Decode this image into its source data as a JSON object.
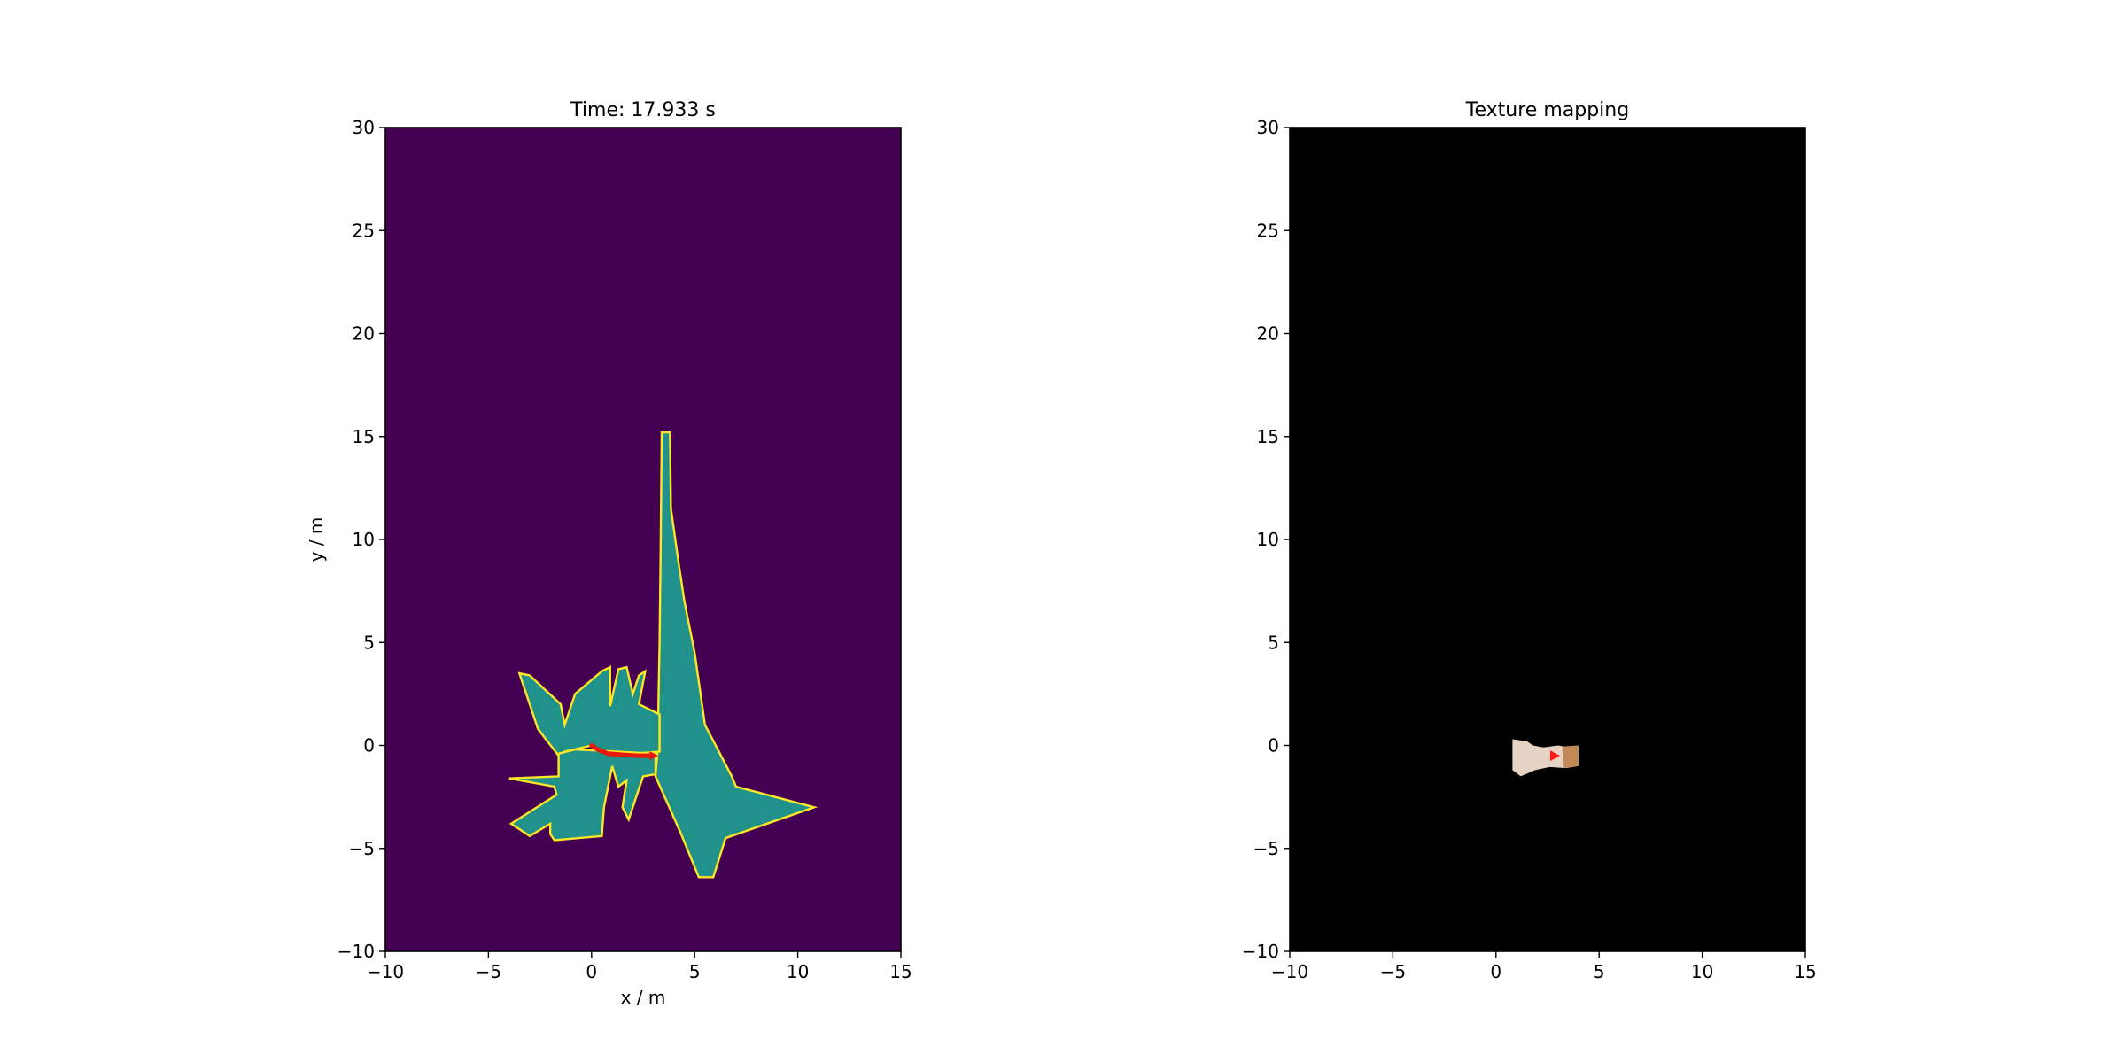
{
  "figure": {
    "background": "#ffffff"
  },
  "chart_data": [
    {
      "type": "heatmap",
      "title": "Time: 17.933 s",
      "xlabel": "x / m",
      "ylabel": "y / m",
      "xlim": [
        -10,
        15
      ],
      "ylim": [
        -10,
        30
      ],
      "xticks": [
        -10,
        -5,
        0,
        5,
        10,
        15
      ],
      "yticks": [
        -10,
        -5,
        0,
        5,
        10,
        15,
        20,
        25,
        30
      ],
      "xtick_labels": [
        "−10",
        "−5",
        "0",
        "5",
        "10",
        "15"
      ],
      "ytick_labels": [
        "−10",
        "−5",
        "0",
        "5",
        "10",
        "15",
        "20",
        "25",
        "30"
      ],
      "colormap": "viridis",
      "colors": {
        "unknown": "#440154",
        "free": "#21918c",
        "occupied": "#fde725",
        "trajectory": "#e8180c"
      },
      "free_regions": [
        [
          [
            3.2,
            -0.3
          ],
          [
            3.3,
            5.0
          ],
          [
            3.35,
            9.5
          ],
          [
            3.4,
            15.2
          ],
          [
            3.8,
            15.2
          ],
          [
            3.85,
            11.5
          ],
          [
            4.2,
            9.0
          ],
          [
            4.5,
            7.0
          ],
          [
            5.0,
            4.5
          ],
          [
            5.5,
            1.0
          ],
          [
            6.8,
            -1.5
          ],
          [
            7.0,
            -2.0
          ],
          [
            10.8,
            -3.0
          ],
          [
            6.5,
            -4.5
          ],
          [
            5.9,
            -6.4
          ],
          [
            5.2,
            -6.4
          ],
          [
            4.3,
            -4.2
          ],
          [
            3.1,
            -1.5
          ]
        ],
        [
          [
            -3.5,
            3.5
          ],
          [
            -3.0,
            3.4
          ],
          [
            -1.5,
            2.0
          ],
          [
            -1.3,
            1.0
          ],
          [
            -0.8,
            2.5
          ],
          [
            0.5,
            3.6
          ],
          [
            0.9,
            3.8
          ],
          [
            0.9,
            1.9
          ],
          [
            1.3,
            3.7
          ],
          [
            1.7,
            3.8
          ],
          [
            2.0,
            2.5
          ],
          [
            2.3,
            3.4
          ],
          [
            2.6,
            3.6
          ],
          [
            2.3,
            2.0
          ],
          [
            3.3,
            1.5
          ],
          [
            3.3,
            -0.3
          ],
          [
            0.8,
            -0.5
          ],
          [
            0.0,
            0.0
          ],
          [
            -1.3,
            -0.3
          ],
          [
            -1.6,
            -0.5
          ],
          [
            -2.6,
            0.8
          ]
        ],
        [
          [
            -0.8,
            -0.2
          ],
          [
            -1.6,
            -0.4
          ],
          [
            -1.6,
            -1.5
          ],
          [
            -4.0,
            -1.6
          ],
          [
            -1.8,
            -2.0
          ],
          [
            -1.7,
            -2.4
          ],
          [
            -3.9,
            -3.8
          ],
          [
            -3.0,
            -4.4
          ],
          [
            -2.0,
            -3.8
          ],
          [
            -2.0,
            -4.3
          ],
          [
            -1.8,
            -4.6
          ],
          [
            0.5,
            -4.4
          ],
          [
            0.6,
            -3.0
          ],
          [
            1.0,
            -1.0
          ],
          [
            1.3,
            -2.0
          ],
          [
            1.7,
            -1.7
          ],
          [
            1.5,
            -3.0
          ],
          [
            1.8,
            -3.6
          ],
          [
            2.5,
            -1.5
          ],
          [
            3.1,
            -1.4
          ],
          [
            3.1,
            -0.4
          ]
        ]
      ],
      "trajectory": {
        "x": [
          0.0,
          0.3,
          0.8,
          1.5,
          2.2,
          2.9
        ],
        "y": [
          0.0,
          -0.2,
          -0.4,
          -0.45,
          -0.5,
          -0.5
        ]
      }
    },
    {
      "type": "heatmap",
      "title": "Texture mapping",
      "xlabel": "",
      "ylabel": "",
      "xlim": [
        -10,
        15
      ],
      "ylim": [
        -10,
        30
      ],
      "xticks": [
        -10,
        -5,
        0,
        5,
        10,
        15
      ],
      "yticks": [
        -10,
        -5,
        0,
        5,
        10,
        15,
        20,
        25,
        30
      ],
      "xtick_labels": [
        "−10",
        "−5",
        "0",
        "5",
        "10",
        "15"
      ],
      "ytick_labels": [
        "−10",
        "−5",
        "0",
        "5",
        "10",
        "15",
        "20",
        "25",
        "30"
      ],
      "colors": {
        "background": "#000000",
        "texture_light": "#e7d3c3",
        "texture_dark": "#c08a58",
        "marker": "#ff1a1a"
      },
      "texture_patch": [
        [
          0.8,
          0.3
        ],
        [
          1.5,
          0.2
        ],
        [
          1.8,
          0.0
        ],
        [
          2.3,
          -0.1
        ],
        [
          3.0,
          0.0
        ],
        [
          3.6,
          -0.1
        ],
        [
          4.0,
          0.0
        ],
        [
          4.0,
          -1.0
        ],
        [
          3.4,
          -1.1
        ],
        [
          2.6,
          -1.05
        ],
        [
          1.9,
          -1.2
        ],
        [
          1.2,
          -1.5
        ],
        [
          0.8,
          -1.2
        ]
      ],
      "texture_patch_dark": [
        [
          3.2,
          -0.05
        ],
        [
          4.0,
          0.0
        ],
        [
          4.0,
          -1.0
        ],
        [
          3.3,
          -1.1
        ]
      ],
      "marker": {
        "x": 2.8,
        "y": -0.5
      }
    }
  ]
}
